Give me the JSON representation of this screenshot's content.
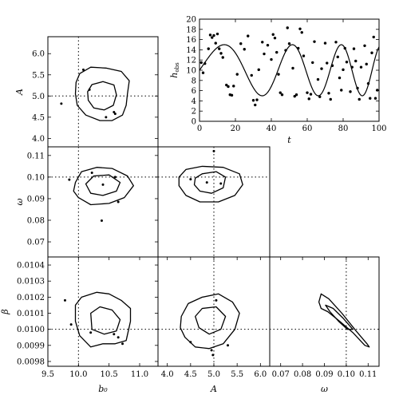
{
  "chart_data": [
    {
      "id": "ts",
      "type": "line",
      "xlabel": "t",
      "ylabel": "h_obs",
      "ylabel_main": "h",
      "ylabel_sub": "obs",
      "xlim": [
        0,
        100
      ],
      "ylim": [
        0,
        20
      ],
      "xticks": [
        0,
        20,
        40,
        60,
        80,
        100
      ],
      "yticks": [
        0,
        2,
        4,
        6,
        8,
        10,
        12,
        14,
        16,
        18,
        20
      ],
      "model": {
        "b0": 10,
        "A": 5,
        "omega": 0.1,
        "beta": 0.01
      },
      "observations": {
        "t": [
          1,
          2,
          3,
          5,
          6,
          7,
          8,
          9,
          10,
          11,
          12,
          13,
          15,
          16,
          17,
          18,
          19,
          21,
          23,
          25,
          27,
          29,
          30,
          31,
          32,
          33,
          35,
          36,
          38,
          40,
          41,
          42,
          43,
          44,
          45,
          46,
          48,
          49,
          50,
          52,
          53,
          54,
          55,
          56,
          57,
          58,
          60,
          61,
          62,
          63,
          64,
          66,
          67,
          68,
          70,
          71,
          72,
          73,
          74,
          76,
          77,
          78,
          79,
          80,
          81,
          82,
          84,
          85,
          86,
          87,
          88,
          89,
          90,
          92,
          93,
          94,
          95,
          96,
          97,
          98,
          99
        ],
        "h": [
          11.5,
          9.5,
          11.3,
          14.2,
          16.9,
          16.4,
          16.8,
          15.3,
          17.1,
          14.2,
          13.3,
          12.5,
          7.1,
          6.8,
          5.2,
          5.1,
          6.9,
          9.2,
          15.2,
          14.1,
          16.7,
          9.0,
          4.1,
          3.2,
          4.2,
          10.1,
          15.5,
          13.2,
          14.9,
          12.1,
          17.0,
          16.3,
          13.5,
          9.2,
          5.6,
          5.2,
          13.9,
          18.3,
          15.2,
          10.4,
          4.9,
          5.2,
          14.3,
          18.1,
          17.4,
          12.8,
          5.6,
          4.4,
          5.3,
          11.5,
          15.6,
          8.2,
          4.8,
          10.3,
          15.3,
          11.4,
          5.5,
          4.3,
          10.9,
          15.5,
          12.6,
          8.5,
          6.1,
          10.1,
          14.3,
          11.6,
          5.8,
          10.6,
          14.2,
          11.8,
          6.5,
          4.3,
          10.6,
          14.8,
          11.2,
          7.4,
          4.5,
          13.4,
          16.5,
          4.5,
          6.1
        ]
      }
    },
    {
      "id": "b0-A",
      "type": "contour",
      "ylabel": "A",
      "xlim": [
        9.5,
        11.3
      ],
      "ylim": [
        3.8,
        6.4
      ],
      "yticks": [
        4.0,
        4.5,
        5.0,
        5.5,
        6.0
      ],
      "ytick_labels": [
        "4.0",
        "4.5",
        "5.0",
        "5.5",
        "6.0"
      ],
      "truth": [
        10,
        5
      ],
      "contours": [
        [
          [
            10.02,
            5.53
          ],
          [
            10.2,
            5.68
          ],
          [
            10.45,
            5.66
          ],
          [
            10.7,
            5.58
          ],
          [
            10.83,
            5.36
          ],
          [
            10.8,
            5.05
          ],
          [
            10.78,
            4.78
          ],
          [
            10.72,
            4.55
          ],
          [
            10.55,
            4.42
          ],
          [
            10.35,
            4.42
          ],
          [
            10.12,
            4.55
          ],
          [
            9.98,
            4.78
          ],
          [
            9.95,
            5.05
          ],
          [
            9.96,
            5.32
          ]
        ],
        [
          [
            10.22,
            5.27
          ],
          [
            10.4,
            5.34
          ],
          [
            10.58,
            5.26
          ],
          [
            10.62,
            5.03
          ],
          [
            10.57,
            4.78
          ],
          [
            10.42,
            4.67
          ],
          [
            10.25,
            4.72
          ],
          [
            10.16,
            4.9
          ],
          [
            10.15,
            5.1
          ]
        ]
      ],
      "points": [
        [
          10.08,
          5.62
        ],
        [
          10.18,
          5.15
        ],
        [
          10.58,
          4.62
        ],
        [
          10.6,
          4.58
        ],
        [
          10.45,
          4.5
        ],
        [
          9.72,
          4.82
        ]
      ]
    },
    {
      "id": "b0-omega",
      "type": "contour",
      "ylabel": "ω",
      "xlim": [
        9.5,
        11.3
      ],
      "ylim": [
        0.063,
        0.114
      ],
      "yticks": [
        0.07,
        0.08,
        0.09,
        0.1,
        0.11
      ],
      "ytick_labels": [
        "0.07",
        "0.08",
        "0.09",
        "0.10",
        "0.11"
      ],
      "truth": [
        10,
        0.1
      ],
      "contours": [
        [
          [
            9.95,
            0.0975
          ],
          [
            10.05,
            0.1025
          ],
          [
            10.3,
            0.1045
          ],
          [
            10.55,
            0.104
          ],
          [
            10.8,
            0.1005
          ],
          [
            10.9,
            0.096
          ],
          [
            10.75,
            0.0905
          ],
          [
            10.5,
            0.0878
          ],
          [
            10.2,
            0.0872
          ],
          [
            10.0,
            0.0905
          ],
          [
            9.92,
            0.0935
          ]
        ],
        [
          [
            10.12,
            0.0968
          ],
          [
            10.25,
            0.1005
          ],
          [
            10.5,
            0.101
          ],
          [
            10.68,
            0.0975
          ],
          [
            10.62,
            0.0935
          ],
          [
            10.4,
            0.0915
          ],
          [
            10.2,
            0.0925
          ]
        ]
      ],
      "points": [
        [
          10.22,
          0.102
        ],
        [
          10.65,
          0.0885
        ],
        [
          10.38,
          0.0798
        ],
        [
          9.85,
          0.0988
        ],
        [
          10.6,
          0.1
        ],
        [
          10.4,
          0.0965
        ]
      ]
    },
    {
      "id": "A-omega",
      "type": "contour",
      "xlim": [
        3.8,
        6.2
      ],
      "ylim": [
        0.063,
        0.114
      ],
      "truth": [
        5,
        0.1
      ],
      "contours": [
        [
          [
            4.25,
            0.1
          ],
          [
            4.4,
            0.1035
          ],
          [
            4.75,
            0.105
          ],
          [
            5.2,
            0.1045
          ],
          [
            5.55,
            0.1015
          ],
          [
            5.62,
            0.0965
          ],
          [
            5.45,
            0.0915
          ],
          [
            5.1,
            0.0885
          ],
          [
            4.7,
            0.0885
          ],
          [
            4.4,
            0.0915
          ],
          [
            4.25,
            0.096
          ]
        ],
        [
          [
            4.6,
            0.0995
          ],
          [
            4.75,
            0.1015
          ],
          [
            5.05,
            0.1025
          ],
          [
            5.25,
            0.1
          ],
          [
            5.2,
            0.095
          ],
          [
            4.95,
            0.0925
          ],
          [
            4.7,
            0.0935
          ],
          [
            4.58,
            0.0965
          ]
        ]
      ],
      "points": [
        [
          4.5,
          0.099
        ],
        [
          5.0,
          0.112
        ],
        [
          4.85,
          0.0975
        ],
        [
          5.15,
          0.097
        ]
      ]
    },
    {
      "id": "b0-beta",
      "type": "contour",
      "ylabel": "β",
      "xlabel": "b₀",
      "xlim": [
        9.5,
        11.3
      ],
      "ylim": [
        0.00977,
        0.01045
      ],
      "xticks": [
        9.5,
        10.0,
        10.5,
        11.0
      ],
      "xtick_labels": [
        "9.5",
        "10.0",
        "10.5",
        "11.0"
      ],
      "yticks": [
        0.0098,
        0.0099,
        0.01,
        0.0101,
        0.0102,
        0.0103,
        0.0104
      ],
      "ytick_labels": [
        "0.0098",
        "0.0099",
        "0.0100",
        "0.0101",
        "0.0102",
        "0.0103",
        "0.0104"
      ],
      "truth": [
        10,
        0.01
      ],
      "contours": [
        [
          [
            9.95,
            0.01015
          ],
          [
            10.05,
            0.0102
          ],
          [
            10.3,
            0.01023
          ],
          [
            10.5,
            0.01022
          ],
          [
            10.7,
            0.01018
          ],
          [
            10.85,
            0.01013
          ],
          [
            10.85,
            0.01005
          ],
          [
            10.78,
            0.00993
          ],
          [
            10.6,
            0.00991
          ],
          [
            10.4,
            0.00991
          ],
          [
            10.2,
            0.00989
          ],
          [
            10.02,
            0.00996
          ],
          [
            9.95,
            0.01005
          ]
        ],
        [
          [
            10.2,
            0.0101
          ],
          [
            10.35,
            0.01014
          ],
          [
            10.55,
            0.01012
          ],
          [
            10.68,
            0.01006
          ],
          [
            10.62,
            0.00999
          ],
          [
            10.42,
            0.00997
          ],
          [
            10.22,
            0.01
          ]
        ]
      ],
      "points": [
        [
          9.78,
          0.01018
        ],
        [
          9.88,
          0.01003
        ],
        [
          10.2,
          0.00998
        ],
        [
          10.65,
          0.00995
        ],
        [
          10.72,
          0.00991
        ],
        [
          10.58,
          0.00997
        ]
      ]
    },
    {
      "id": "A-beta",
      "type": "contour",
      "xlabel": "A",
      "xlim": [
        3.8,
        6.2
      ],
      "ylim": [
        0.00977,
        0.01045
      ],
      "xticks": [
        4.0,
        4.5,
        5.0,
        5.5,
        6.0
      ],
      "xtick_labels": [
        "4.0",
        "4.5",
        "5.0",
        "5.5",
        "6.0"
      ],
      "truth": [
        5,
        0.01
      ],
      "contours": [
        [
          [
            4.3,
            0.01008
          ],
          [
            4.45,
            0.01016
          ],
          [
            4.75,
            0.0102
          ],
          [
            5.1,
            0.01022
          ],
          [
            5.4,
            0.01017
          ],
          [
            5.55,
            0.0101
          ],
          [
            5.45,
            0.01
          ],
          [
            5.2,
            0.00991
          ],
          [
            4.9,
            0.00988
          ],
          [
            4.6,
            0.00989
          ],
          [
            4.38,
            0.00995
          ],
          [
            4.28,
            0.01001
          ]
        ],
        [
          [
            4.6,
            0.01008
          ],
          [
            4.75,
            0.01013
          ],
          [
            5.05,
            0.01014
          ],
          [
            5.25,
            0.01008
          ],
          [
            5.15,
            0.01
          ],
          [
            4.9,
            0.00997
          ],
          [
            4.68,
            0.01001
          ]
        ]
      ],
      "points": [
        [
          5.05,
          0.01018
        ],
        [
          4.95,
          0.00987
        ],
        [
          5.3,
          0.0099
        ],
        [
          4.5,
          0.00992
        ],
        [
          4.98,
          0.00984
        ]
      ]
    },
    {
      "id": "omega-beta",
      "type": "contour",
      "xlabel": "ω",
      "xlim": [
        0.065,
        0.115
      ],
      "ylim": [
        0.00977,
        0.01045
      ],
      "xticks": [
        0.07,
        0.08,
        0.09,
        0.1,
        0.11
      ],
      "xtick_labels": [
        "0.07",
        "0.08",
        "0.09",
        "0.10",
        "0.11"
      ],
      "truth": [
        0.1,
        0.01
      ],
      "contours": [
        [
          [
            0.0875,
            0.01017
          ],
          [
            0.0885,
            0.01022
          ],
          [
            0.092,
            0.01019
          ],
          [
            0.098,
            0.0101
          ],
          [
            0.1045,
            0.00999
          ],
          [
            0.1095,
            0.00991
          ],
          [
            0.1105,
            0.00989
          ],
          [
            0.1085,
            0.0099
          ],
          [
            0.103,
            0.00998
          ],
          [
            0.097,
            0.01005
          ],
          [
            0.0915,
            0.01011
          ],
          [
            0.0885,
            0.01013
          ]
        ],
        [
          [
            0.0905,
            0.01015
          ],
          [
            0.094,
            0.01013
          ],
          [
            0.0985,
            0.01007
          ],
          [
            0.103,
            0.01
          ],
          [
            0.1005,
            0.01
          ],
          [
            0.0965,
            0.01005
          ],
          [
            0.0925,
            0.01011
          ]
        ]
      ],
      "points": []
    }
  ]
}
